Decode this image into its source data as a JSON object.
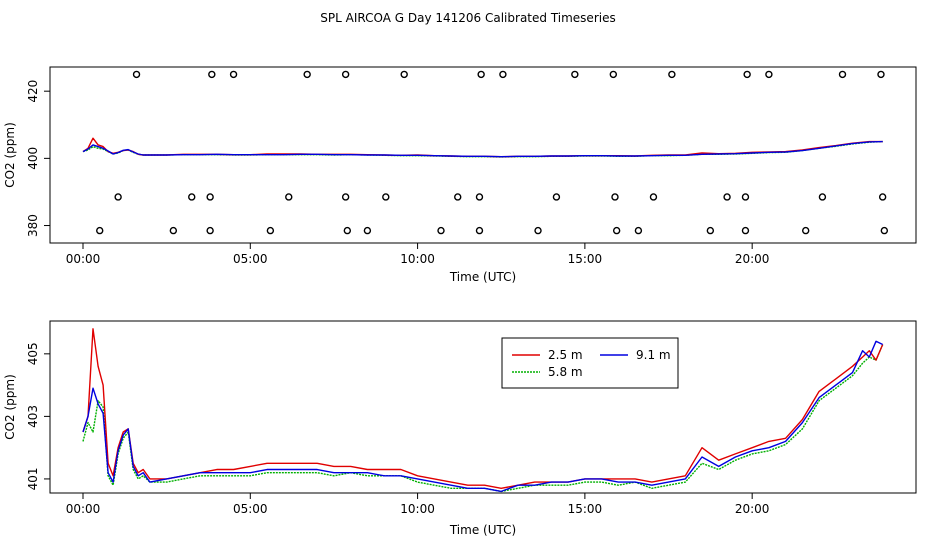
{
  "title": "SPL AIRCOA G  Day 141206  Calibrated Timeseries",
  "colors": {
    "2.5 m": "#e00000",
    "5.8 m": "#00b000",
    "9.1 m": "#0000e0",
    "axis": "#000000",
    "markers": "#000000"
  },
  "chart_data": [
    {
      "type": "line+scatter",
      "xlabel": "Time (UTC)",
      "ylabel": "CO2 (ppm)",
      "xlim": [
        0,
        24
      ],
      "ylim": [
        374.8,
        427.2
      ],
      "xticks": [
        0,
        5,
        10,
        15,
        20
      ],
      "xtick_labels": [
        "00:00",
        "05:00",
        "10:00",
        "15:00",
        "20:00"
      ],
      "yticks": [
        380,
        400,
        420
      ],
      "ytick_labels": [
        "380",
        "400",
        "420"
      ],
      "series_x": [
        0,
        0.15,
        0.3,
        0.45,
        0.6,
        0.75,
        0.9,
        1.05,
        1.2,
        1.35,
        1.5,
        1.65,
        1.8,
        2,
        2.5,
        3,
        3.5,
        4,
        4.5,
        5,
        5.5,
        6,
        6.5,
        7,
        7.5,
        8,
        8.5,
        9,
        9.5,
        10,
        10.5,
        11,
        11.5,
        12,
        12.5,
        13,
        13.5,
        14,
        14.5,
        15,
        15.5,
        16,
        16.5,
        17,
        17.5,
        18,
        18.5,
        19,
        19.5,
        20,
        20.5,
        21,
        21.5,
        22,
        22.5,
        23,
        23.5,
        23.9
      ],
      "series": [
        {
          "name": "2.5 m",
          "color": "#e00000",
          "values": [
            402,
            403,
            406,
            404,
            403.5,
            402,
            401.5,
            401.8,
            402.3,
            402.5,
            402,
            401.2,
            401,
            401,
            401,
            401.2,
            401.2,
            401.2,
            401.1,
            401.1,
            401.3,
            401.3,
            401.3,
            401.2,
            401.2,
            401.2,
            401.1,
            401,
            400.9,
            401,
            400.8,
            400.7,
            400.6,
            400.6,
            400.5,
            400.6,
            400.6,
            400.7,
            400.7,
            400.8,
            400.8,
            400.8,
            400.7,
            400.9,
            401,
            401,
            401.6,
            401.4,
            401.5,
            401.8,
            401.9,
            402,
            402.5,
            403.2,
            403.8,
            404.5,
            405,
            405
          ]
        },
        {
          "name": "5.8 m",
          "color": "#00b000",
          "values": [
            402,
            402.5,
            403.5,
            403,
            402.8,
            402,
            401.3,
            401.6,
            402.3,
            402.5,
            401.8,
            401.2,
            401,
            401,
            401,
            401.1,
            401.1,
            401.1,
            401,
            401,
            401.1,
            401.1,
            401.1,
            401.1,
            401,
            401.1,
            401,
            400.9,
            400.8,
            400.8,
            400.7,
            400.6,
            400.5,
            400.5,
            400.4,
            400.5,
            400.5,
            400.6,
            400.6,
            400.7,
            400.7,
            400.6,
            400.6,
            400.8,
            400.8,
            400.9,
            401.2,
            401.2,
            401.3,
            401.5,
            401.7,
            401.8,
            402.3,
            403,
            403.6,
            404.3,
            404.8,
            405
          ]
        },
        {
          "name": "9.1 m",
          "color": "#0000e0",
          "values": [
            402,
            402.8,
            404,
            403.5,
            403,
            402.2,
            401.3,
            401.7,
            402.4,
            402.6,
            401.9,
            401.3,
            401,
            401,
            401,
            401.1,
            401.1,
            401.2,
            401.1,
            401.1,
            401.1,
            401.1,
            401.2,
            401.2,
            401.1,
            401.1,
            401,
            401,
            400.9,
            400.9,
            400.8,
            400.7,
            400.6,
            400.6,
            400.5,
            400.6,
            400.6,
            400.7,
            400.7,
            400.8,
            400.8,
            400.7,
            400.7,
            400.8,
            400.9,
            400.9,
            401.2,
            401.3,
            401.4,
            401.6,
            401.8,
            401.9,
            402.3,
            403,
            403.7,
            404.4,
            404.9,
            405
          ]
        }
      ],
      "markers": {
        "shape": "open-circle",
        "rows": [
          {
            "y": 425,
            "x": [
              1.6,
              3.85,
              4.5,
              6.7,
              7.85,
              9.6,
              11.9,
              12.55,
              14.7,
              15.85,
              17.6,
              19.85,
              20.5,
              22.7,
              23.85
            ]
          },
          {
            "y": 388.5,
            "x": [
              1.05,
              3.25,
              3.8,
              6.15,
              7.85,
              9.05,
              11.2,
              11.85,
              14.15,
              15.9,
              17.05,
              19.25,
              19.8,
              22.1,
              23.9
            ]
          },
          {
            "y": 378.5,
            "x": [
              0.5,
              2.7,
              3.8,
              5.6,
              7.9,
              8.5,
              10.7,
              11.85,
              13.6,
              15.95,
              16.6,
              18.75,
              19.8,
              21.6,
              23.95
            ]
          }
        ]
      }
    },
    {
      "type": "line",
      "xlabel": "Time (UTC)",
      "ylabel": "CO2 (ppm)",
      "xlim": [
        0,
        24
      ],
      "ylim": [
        400.55,
        406.05
      ],
      "xticks": [
        0,
        5,
        10,
        15,
        20
      ],
      "xtick_labels": [
        "00:00",
        "05:00",
        "10:00",
        "15:00",
        "20:00"
      ],
      "yticks": [
        401,
        403,
        405
      ],
      "ytick_labels": [
        "401",
        "403",
        "405"
      ],
      "legend": {
        "position": "top-right",
        "entries": [
          "2.5 m",
          "5.8 m",
          "9.1 m"
        ]
      },
      "series_x": [
        0,
        0.15,
        0.3,
        0.45,
        0.6,
        0.75,
        0.9,
        1.05,
        1.2,
        1.35,
        1.5,
        1.65,
        1.8,
        2,
        2.5,
        3,
        3.5,
        4,
        4.5,
        5,
        5.5,
        6,
        6.5,
        7,
        7.5,
        8,
        8.5,
        9,
        9.5,
        10,
        10.5,
        11,
        11.5,
        12,
        12.5,
        13,
        13.5,
        14,
        14.5,
        15,
        15.5,
        16,
        16.5,
        17,
        17.5,
        18,
        18.5,
        19,
        19.5,
        20,
        20.5,
        21,
        21.5,
        22,
        22.5,
        23,
        23.3,
        23.5,
        23.7,
        23.9
      ],
      "series": [
        {
          "name": "2.5 m",
          "color": "#e00000",
          "values": [
            402.5,
            403,
            405.8,
            404.6,
            404,
            401.5,
            401.1,
            402,
            402.5,
            402.6,
            401.5,
            401.2,
            401.3,
            401,
            401,
            401.1,
            401.2,
            401.3,
            401.3,
            401.4,
            401.5,
            401.5,
            401.5,
            401.5,
            401.4,
            401.4,
            401.3,
            401.3,
            401.3,
            401.1,
            401,
            400.9,
            400.8,
            400.8,
            400.7,
            400.8,
            400.9,
            400.9,
            400.9,
            401,
            401,
            401,
            401,
            400.9,
            401,
            401.1,
            402,
            401.6,
            401.8,
            402,
            402.2,
            402.3,
            402.9,
            403.8,
            404.2,
            404.6,
            404.9,
            405.1,
            404.8,
            405.3
          ]
        },
        {
          "name": "5.8 m",
          "color": "#00b000",
          "values": [
            402.2,
            402.8,
            402.5,
            403.5,
            403.3,
            401.1,
            400.8,
            401.8,
            402.3,
            402.5,
            401.3,
            401,
            401.1,
            400.9,
            400.9,
            401,
            401.1,
            401.1,
            401.1,
            401.1,
            401.2,
            401.2,
            401.2,
            401.2,
            401.1,
            401.2,
            401.1,
            401.1,
            401.1,
            400.9,
            400.8,
            400.7,
            400.7,
            400.7,
            400.6,
            400.7,
            400.8,
            400.8,
            400.8,
            400.9,
            400.9,
            400.8,
            400.9,
            400.7,
            400.8,
            400.9,
            401.5,
            401.3,
            401.6,
            401.8,
            401.9,
            402.1,
            402.6,
            403.5,
            403.9,
            404.3,
            404.7,
            404.9,
            404.8,
            405.3
          ]
        },
        {
          "name": "9.1 m",
          "color": "#0000e0",
          "values": [
            402.5,
            403,
            403.9,
            403.4,
            403.1,
            401.2,
            400.9,
            401.9,
            402.4,
            402.6,
            401.4,
            401.1,
            401.2,
            400.9,
            401,
            401.1,
            401.2,
            401.2,
            401.2,
            401.2,
            401.3,
            401.3,
            401.3,
            401.3,
            401.2,
            401.2,
            401.2,
            401.1,
            401.1,
            401,
            400.9,
            400.8,
            400.7,
            400.7,
            400.6,
            400.8,
            400.8,
            400.9,
            400.9,
            401,
            401,
            400.9,
            400.9,
            400.8,
            400.9,
            401,
            401.7,
            401.4,
            401.7,
            401.9,
            402,
            402.2,
            402.8,
            403.6,
            404,
            404.4,
            405.1,
            404.9,
            405.4,
            405.3
          ]
        }
      ]
    }
  ]
}
